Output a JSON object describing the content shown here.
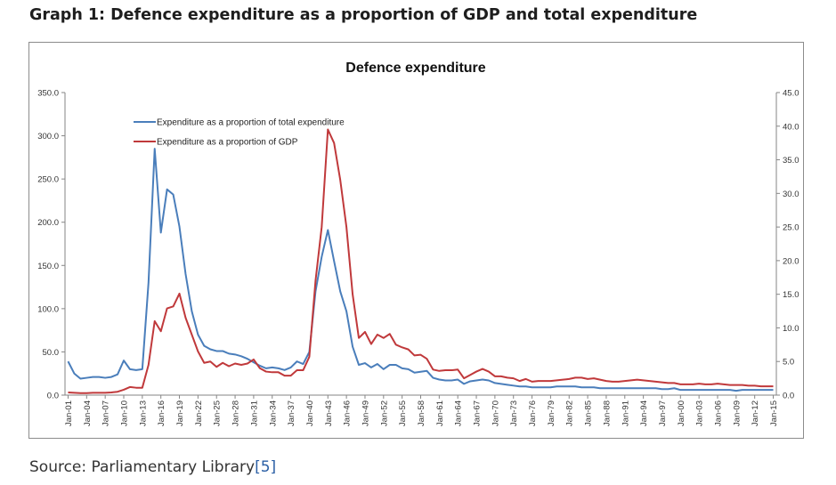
{
  "page": {
    "heading": "Graph 1: Defence expenditure as a proportion of GDP and total expenditure",
    "source_label": "Source: Parliamentary Library",
    "source_ref": "[5]"
  },
  "chart_data": {
    "type": "line",
    "title": "Defence expenditure",
    "xlabel": "",
    "ylabel_left": "",
    "ylabel_right": "",
    "ylim_left": [
      0,
      350
    ],
    "ylim_right": [
      0,
      45
    ],
    "yticks_left": [
      "0.0",
      "50.0",
      "100.0",
      "150.0",
      "200.0",
      "250.0",
      "300.0",
      "350.0"
    ],
    "yticks_right": [
      "0.0",
      "5.0",
      "10.0",
      "15.0",
      "20.0",
      "25.0",
      "30.0",
      "35.0",
      "40.0",
      "45.0"
    ],
    "x_tick_labels": [
      "Jan-01",
      "Jan-04",
      "Jan-07",
      "Jan-10",
      "Jan-13",
      "Jan-16",
      "Jan-19",
      "Jan-22",
      "Jan-25",
      "Jan-28",
      "Jan-31",
      "Jan-34",
      "Jan-37",
      "Jan-40",
      "Jan-43",
      "Jan-46",
      "Jan-49",
      "Jan-52",
      "Jan-55",
      "Jan-58",
      "Jan-61",
      "Jan-64",
      "Jan-67",
      "Jan-70",
      "Jan-73",
      "Jan-76",
      "Jan-79",
      "Jan-82",
      "Jan-85",
      "Jan-88",
      "Jan-91",
      "Jan-94",
      "Jan-97",
      "Jan-00",
      "Jan-03",
      "Jan-06",
      "Jan-09",
      "Jan-12",
      "Jan-15"
    ],
    "grid": false,
    "legend_position": "top-left",
    "series": [
      {
        "name": "Expenditure as a proportion of total expenditure",
        "axis": "left",
        "color": "#4a7ebb",
        "x": [
          "Jan-01",
          "Jan-02",
          "Jan-03",
          "Jan-04",
          "Jan-05",
          "Jan-06",
          "Jan-07",
          "Jan-08",
          "Jan-09",
          "Jan-10",
          "Jan-11",
          "Jan-12",
          "Jan-13",
          "Jan-14",
          "Jan-15",
          "Jan-16",
          "Jan-17",
          "Jan-18",
          "Jan-19",
          "Jan-20",
          "Jan-21",
          "Jan-22",
          "Jan-23",
          "Jan-24",
          "Jan-25",
          "Jan-26",
          "Jan-27",
          "Jan-28",
          "Jan-29",
          "Jan-30",
          "Jan-31",
          "Jan-32",
          "Jan-33",
          "Jan-34",
          "Jan-35",
          "Jan-36",
          "Jan-37",
          "Jan-38",
          "Jan-39",
          "Jan-40",
          "Jan-41",
          "Jan-42",
          "Jan-43",
          "Jan-44",
          "Jan-45",
          "Jan-46",
          "Jan-47",
          "Jan-48",
          "Jan-49",
          "Jan-50",
          "Jan-51",
          "Jan-52",
          "Jan-53",
          "Jan-54",
          "Jan-55",
          "Jan-56",
          "Jan-57",
          "Jan-58",
          "Jan-59",
          "Jan-60",
          "Jan-61",
          "Jan-62",
          "Jan-63",
          "Jan-64",
          "Jan-65",
          "Jan-66",
          "Jan-67",
          "Jan-68",
          "Jan-69",
          "Jan-70",
          "Jan-71",
          "Jan-72",
          "Jan-73",
          "Jan-74",
          "Jan-75",
          "Jan-76",
          "Jan-77",
          "Jan-78",
          "Jan-79",
          "Jan-80",
          "Jan-81",
          "Jan-82",
          "Jan-83",
          "Jan-84",
          "Jan-85",
          "Jan-86",
          "Jan-87",
          "Jan-88",
          "Jan-89",
          "Jan-90",
          "Jan-91",
          "Jan-92",
          "Jan-93",
          "Jan-94",
          "Jan-95",
          "Jan-96",
          "Jan-97",
          "Jan-98",
          "Jan-99",
          "Jan-00",
          "Jan-01",
          "Jan-02",
          "Jan-03",
          "Jan-04",
          "Jan-05",
          "Jan-06",
          "Jan-07",
          "Jan-08",
          "Jan-09",
          "Jan-10",
          "Jan-11",
          "Jan-12",
          "Jan-13",
          "Jan-14",
          "Jan-15"
        ],
        "values": [
          39,
          25,
          19,
          20,
          21,
          21,
          20,
          21,
          24,
          40,
          30,
          29,
          30,
          130,
          285,
          188,
          238,
          232,
          195,
          140,
          97,
          70,
          57,
          53,
          51,
          51,
          48,
          47,
          45,
          42,
          38,
          34,
          31,
          32,
          31,
          29,
          32,
          39,
          36,
          50,
          120,
          160,
          191,
          155,
          120,
          97,
          56,
          35,
          37,
          32,
          36,
          30,
          35,
          35,
          31,
          30,
          26,
          27,
          28,
          20,
          18,
          17,
          17,
          18,
          13,
          16,
          17,
          18,
          17,
          14,
          13,
          12,
          11,
          10,
          10,
          9,
          9,
          9,
          9,
          10,
          10,
          10,
          10,
          9,
          9,
          9,
          8,
          8,
          8,
          8,
          8,
          8,
          8,
          8,
          8,
          8,
          7,
          7,
          8,
          6,
          6,
          6,
          6,
          6,
          6,
          6,
          6,
          6,
          5,
          6,
          6,
          6,
          6,
          6,
          6
        ]
      },
      {
        "name": "Expenditure as a proportion of GDP",
        "axis": "right",
        "color": "#c0393b",
        "x": [
          "Jan-01",
          "Jan-02",
          "Jan-03",
          "Jan-04",
          "Jan-05",
          "Jan-06",
          "Jan-07",
          "Jan-08",
          "Jan-09",
          "Jan-10",
          "Jan-11",
          "Jan-12",
          "Jan-13",
          "Jan-14",
          "Jan-15",
          "Jan-16",
          "Jan-17",
          "Jan-18",
          "Jan-19",
          "Jan-20",
          "Jan-21",
          "Jan-22",
          "Jan-23",
          "Jan-24",
          "Jan-25",
          "Jan-26",
          "Jan-27",
          "Jan-28",
          "Jan-29",
          "Jan-30",
          "Jan-31",
          "Jan-32",
          "Jan-33",
          "Jan-34",
          "Jan-35",
          "Jan-36",
          "Jan-37",
          "Jan-38",
          "Jan-39",
          "Jan-40",
          "Jan-41",
          "Jan-42",
          "Jan-43",
          "Jan-44",
          "Jan-45",
          "Jan-46",
          "Jan-47",
          "Jan-48",
          "Jan-49",
          "Jan-50",
          "Jan-51",
          "Jan-52",
          "Jan-53",
          "Jan-54",
          "Jan-55",
          "Jan-56",
          "Jan-57",
          "Jan-58",
          "Jan-59",
          "Jan-60",
          "Jan-61",
          "Jan-62",
          "Jan-63",
          "Jan-64",
          "Jan-65",
          "Jan-66",
          "Jan-67",
          "Jan-68",
          "Jan-69",
          "Jan-70",
          "Jan-71",
          "Jan-72",
          "Jan-73",
          "Jan-74",
          "Jan-75",
          "Jan-76",
          "Jan-77",
          "Jan-78",
          "Jan-79",
          "Jan-80",
          "Jan-81",
          "Jan-82",
          "Jan-83",
          "Jan-84",
          "Jan-85",
          "Jan-86",
          "Jan-87",
          "Jan-88",
          "Jan-89",
          "Jan-90",
          "Jan-91",
          "Jan-92",
          "Jan-93",
          "Jan-94",
          "Jan-95",
          "Jan-96",
          "Jan-97",
          "Jan-98",
          "Jan-99",
          "Jan-00",
          "Jan-01",
          "Jan-02",
          "Jan-03",
          "Jan-04",
          "Jan-05",
          "Jan-06",
          "Jan-07",
          "Jan-08",
          "Jan-09",
          "Jan-10",
          "Jan-11",
          "Jan-12",
          "Jan-13",
          "Jan-14",
          "Jan-15"
        ],
        "values": [
          0.4,
          0.35,
          0.3,
          0.3,
          0.35,
          0.35,
          0.35,
          0.4,
          0.5,
          0.8,
          1.2,
          1.1,
          1.1,
          4.5,
          11.0,
          9.5,
          12.9,
          13.2,
          15.1,
          11.5,
          9.0,
          6.5,
          4.8,
          5.0,
          4.2,
          4.8,
          4.3,
          4.7,
          4.5,
          4.7,
          5.3,
          4.0,
          3.5,
          3.4,
          3.4,
          2.9,
          2.9,
          3.7,
          3.7,
          5.7,
          17.0,
          25.0,
          39.5,
          37.5,
          32.0,
          25.0,
          15.0,
          8.5,
          9.4,
          7.6,
          9.0,
          8.5,
          9.1,
          7.5,
          7.1,
          6.8,
          5.9,
          6.0,
          5.4,
          3.8,
          3.6,
          3.7,
          3.7,
          3.8,
          2.5,
          3.0,
          3.5,
          3.9,
          3.5,
          2.8,
          2.8,
          2.6,
          2.5,
          2.1,
          2.4,
          2.0,
          2.1,
          2.1,
          2.1,
          2.2,
          2.3,
          2.4,
          2.6,
          2.6,
          2.4,
          2.5,
          2.3,
          2.1,
          2.0,
          2.0,
          2.1,
          2.2,
          2.3,
          2.2,
          2.1,
          2.0,
          1.9,
          1.8,
          1.8,
          1.6,
          1.6,
          1.6,
          1.7,
          1.6,
          1.6,
          1.7,
          1.6,
          1.5,
          1.5,
          1.5,
          1.4,
          1.4,
          1.3,
          1.3,
          1.3
        ]
      }
    ]
  }
}
